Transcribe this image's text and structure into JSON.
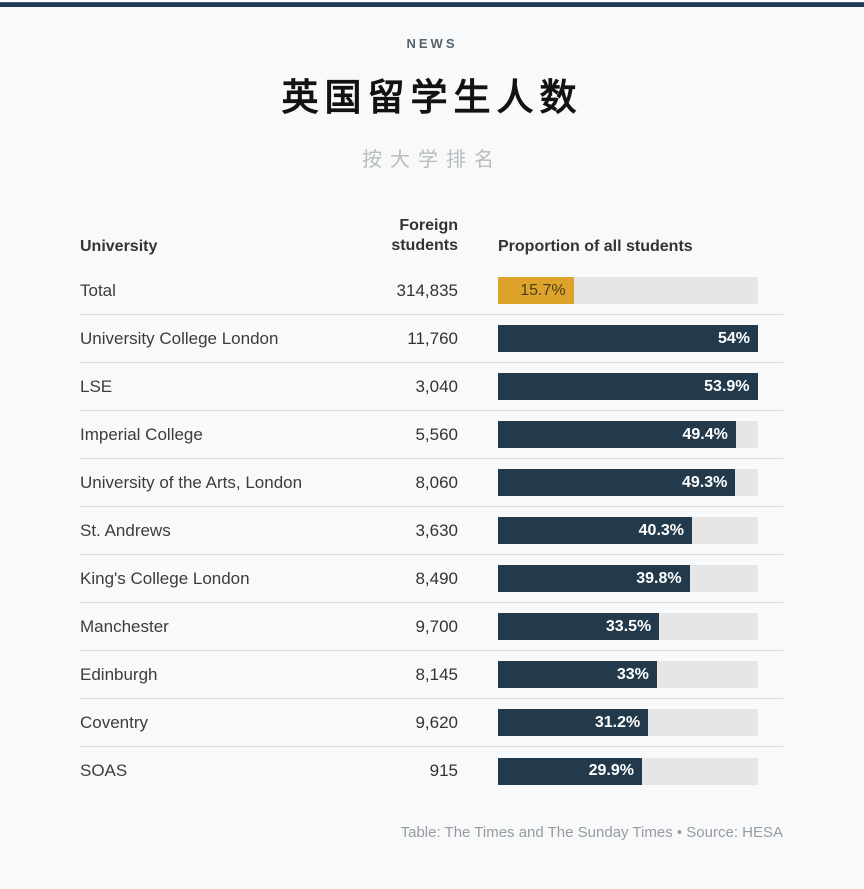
{
  "page": {
    "kicker": "NEWS",
    "title": "英国留学生人数",
    "subtitle": "按大学排名",
    "footer": "Table: The Times and The Sunday Times • Source: HESA"
  },
  "colors": {
    "top_bar": "#223c55",
    "bar_navy": "#223a4b",
    "bar_gold": "#dea32a",
    "bar_track": "#e6e6e6",
    "background": "#f8f9fa"
  },
  "chart_data": {
    "type": "bar",
    "title": "英国留学生人数",
    "subtitle": "按大学排名",
    "kicker": "NEWS",
    "columns": [
      "University",
      "Foreign students",
      "Proportion of all students"
    ],
    "bar_scale_max": 54,
    "unit": "%",
    "rows": [
      {
        "university": "Total",
        "foreign_students": "314,835",
        "proportion": 15.7,
        "proportion_label": "15.7%",
        "highlight": true
      },
      {
        "university": "University College London",
        "foreign_students": "11,760",
        "proportion": 54,
        "proportion_label": "54%",
        "highlight": false
      },
      {
        "university": "LSE",
        "foreign_students": "3,040",
        "proportion": 53.9,
        "proportion_label": "53.9%",
        "highlight": false
      },
      {
        "university": "Imperial College",
        "foreign_students": "5,560",
        "proportion": 49.4,
        "proportion_label": "49.4%",
        "highlight": false
      },
      {
        "university": "University of the Arts, London",
        "foreign_students": "8,060",
        "proportion": 49.3,
        "proportion_label": "49.3%",
        "highlight": false
      },
      {
        "university": "St. Andrews",
        "foreign_students": "3,630",
        "proportion": 40.3,
        "proportion_label": "40.3%",
        "highlight": false
      },
      {
        "university": "King's College London",
        "foreign_students": "8,490",
        "proportion": 39.8,
        "proportion_label": "39.8%",
        "highlight": false
      },
      {
        "university": "Manchester",
        "foreign_students": "9,700",
        "proportion": 33.5,
        "proportion_label": "33.5%",
        "highlight": false
      },
      {
        "university": "Edinburgh",
        "foreign_students": "8,145",
        "proportion": 33,
        "proportion_label": "33%",
        "highlight": false
      },
      {
        "university": "Coventry",
        "foreign_students": "9,620",
        "proportion": 31.2,
        "proportion_label": "31.2%",
        "highlight": false
      },
      {
        "university": "SOAS",
        "foreign_students": "915",
        "proportion": 29.9,
        "proportion_label": "29.9%",
        "highlight": false
      }
    ],
    "footer": "Table: The Times and The Sunday Times • Source: HESA",
    "legend_position": "none",
    "grid": false
  }
}
